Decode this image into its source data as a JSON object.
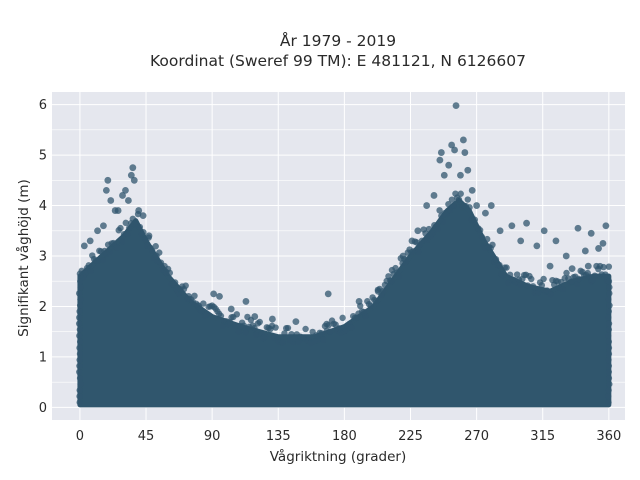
{
  "chart_data": {
    "type": "scatter",
    "title_line1": "År 1979 - 2019",
    "title_line2": "Koordinat (Sweref 99 TM): E 481121, N 6126607",
    "xlabel": "Vågriktning (grader)",
    "ylabel": "Signifikant våghöjd (m)",
    "xlim": [
      -19,
      371
    ],
    "ylim": [
      -0.25,
      6.25
    ],
    "xticks": [
      0,
      45,
      90,
      135,
      180,
      225,
      270,
      315,
      360
    ],
    "yticks": [
      0,
      1,
      2,
      3,
      4,
      5,
      6
    ],
    "grid": true,
    "background": "#e5e7ee",
    "marker_color": "#30566d",
    "marker_opacity": 0.75,
    "dense_envelope": {
      "x": [
        0,
        15,
        30,
        38,
        45,
        60,
        75,
        90,
        110,
        135,
        160,
        180,
        200,
        215,
        225,
        240,
        250,
        258,
        265,
        275,
        290,
        305,
        320,
        335,
        350,
        360
      ],
      "ymax": [
        2.6,
        3.0,
        3.4,
        3.7,
        3.3,
        2.6,
        2.1,
        1.8,
        1.6,
        1.4,
        1.4,
        1.6,
        2.0,
        2.6,
        3.0,
        3.5,
        3.9,
        4.1,
        3.9,
        3.3,
        2.6,
        2.4,
        2.3,
        2.5,
        2.6,
        2.6
      ],
      "ymin": 0.05
    },
    "outliers": [
      {
        "x": 3,
        "y": 3.2
      },
      {
        "x": 7,
        "y": 3.3
      },
      {
        "x": 12,
        "y": 3.5
      },
      {
        "x": 16,
        "y": 3.6
      },
      {
        "x": 19,
        "y": 4.5
      },
      {
        "x": 18,
        "y": 4.3
      },
      {
        "x": 21,
        "y": 4.1
      },
      {
        "x": 24,
        "y": 3.9
      },
      {
        "x": 26,
        "y": 3.9
      },
      {
        "x": 29,
        "y": 4.2
      },
      {
        "x": 31,
        "y": 4.3
      },
      {
        "x": 33,
        "y": 4.1
      },
      {
        "x": 35,
        "y": 4.6
      },
      {
        "x": 36,
        "y": 4.75
      },
      {
        "x": 37,
        "y": 4.5
      },
      {
        "x": 40,
        "y": 3.9
      },
      {
        "x": 43,
        "y": 3.8
      },
      {
        "x": 47,
        "y": 3.4
      },
      {
        "x": 52,
        "y": 3.0
      },
      {
        "x": 58,
        "y": 2.7
      },
      {
        "x": 66,
        "y": 2.35
      },
      {
        "x": 74,
        "y": 2.2
      },
      {
        "x": 81,
        "y": 2.0
      },
      {
        "x": 91,
        "y": 2.25
      },
      {
        "x": 95,
        "y": 2.2
      },
      {
        "x": 103,
        "y": 1.95
      },
      {
        "x": 113,
        "y": 2.1
      },
      {
        "x": 119,
        "y": 1.8
      },
      {
        "x": 131,
        "y": 1.75
      },
      {
        "x": 147,
        "y": 1.7
      },
      {
        "x": 168,
        "y": 1.65
      },
      {
        "x": 169,
        "y": 2.25
      },
      {
        "x": 190,
        "y": 2.1
      },
      {
        "x": 203,
        "y": 2.3
      },
      {
        "x": 212,
        "y": 2.5
      },
      {
        "x": 220,
        "y": 3.0
      },
      {
        "x": 226,
        "y": 3.3
      },
      {
        "x": 230,
        "y": 3.5
      },
      {
        "x": 236,
        "y": 4.0
      },
      {
        "x": 241,
        "y": 4.2
      },
      {
        "x": 245,
        "y": 4.9
      },
      {
        "x": 246,
        "y": 5.05
      },
      {
        "x": 248,
        "y": 4.6
      },
      {
        "x": 251,
        "y": 4.8
      },
      {
        "x": 253,
        "y": 5.2
      },
      {
        "x": 255,
        "y": 5.1
      },
      {
        "x": 256,
        "y": 5.98
      },
      {
        "x": 259,
        "y": 4.6
      },
      {
        "x": 261,
        "y": 5.3
      },
      {
        "x": 262,
        "y": 5.05
      },
      {
        "x": 264,
        "y": 4.7
      },
      {
        "x": 267,
        "y": 4.3
      },
      {
        "x": 270,
        "y": 4.0
      },
      {
        "x": 276,
        "y": 3.85
      },
      {
        "x": 280,
        "y": 4.0
      },
      {
        "x": 286,
        "y": 3.5
      },
      {
        "x": 294,
        "y": 3.6
      },
      {
        "x": 300,
        "y": 3.3
      },
      {
        "x": 304,
        "y": 3.65
      },
      {
        "x": 311,
        "y": 3.2
      },
      {
        "x": 316,
        "y": 3.5
      },
      {
        "x": 324,
        "y": 3.3
      },
      {
        "x": 331,
        "y": 3.0
      },
      {
        "x": 339,
        "y": 3.55
      },
      {
        "x": 344,
        "y": 3.1
      },
      {
        "x": 348,
        "y": 3.45
      },
      {
        "x": 353,
        "y": 3.15
      },
      {
        "x": 356,
        "y": 3.25
      },
      {
        "x": 358,
        "y": 3.6
      },
      {
        "x": 346,
        "y": 2.8
      },
      {
        "x": 335,
        "y": 2.75
      },
      {
        "x": 320,
        "y": 2.8
      }
    ]
  }
}
